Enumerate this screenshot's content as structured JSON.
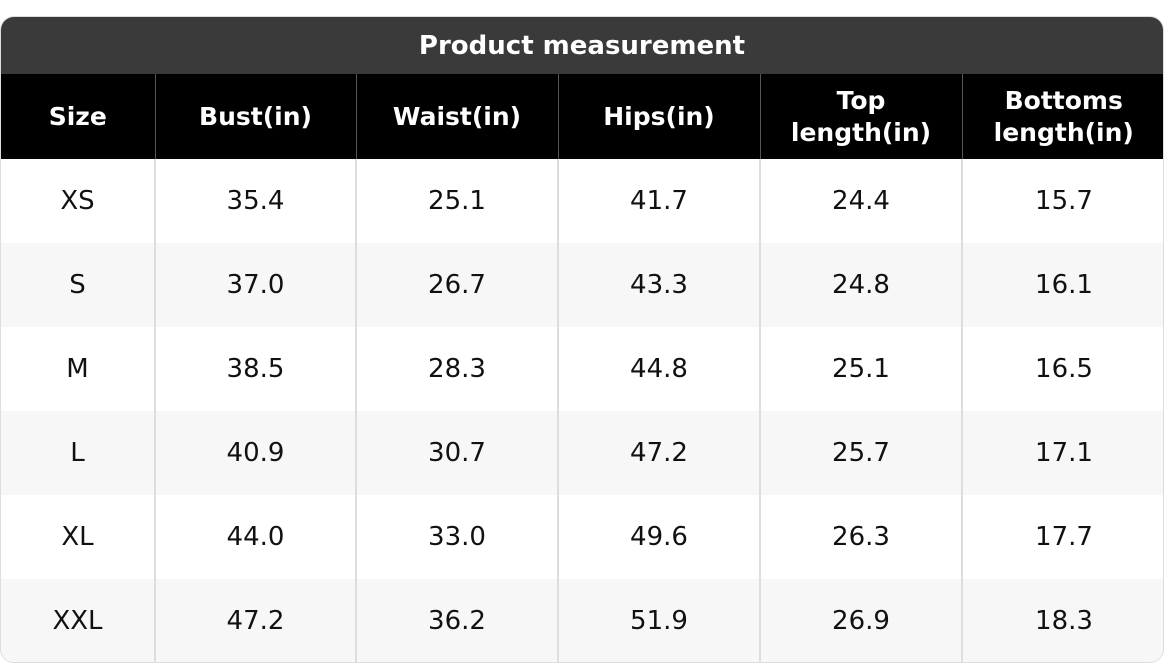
{
  "table": {
    "title": "Product measurement",
    "header": [
      "Size",
      "Bust(in)",
      "Waist(in)",
      "Hips(in)",
      "Top length(in)",
      "Bottoms length(in)"
    ],
    "rows": [
      [
        "XS",
        "35.4",
        "25.1",
        "41.7",
        "24.4",
        "15.7"
      ],
      [
        "S",
        "37.0",
        "26.7",
        "43.3",
        "24.8",
        "16.1"
      ],
      [
        "M",
        "38.5",
        "28.3",
        "44.8",
        "25.1",
        "16.5"
      ],
      [
        "L",
        "40.9",
        "30.7",
        "47.2",
        "25.7",
        "17.1"
      ],
      [
        "XL",
        "44.0",
        "33.0",
        "49.6",
        "26.3",
        "17.7"
      ],
      [
        "XXL",
        "47.2",
        "36.2",
        "51.9",
        "26.9",
        "18.3"
      ]
    ]
  }
}
